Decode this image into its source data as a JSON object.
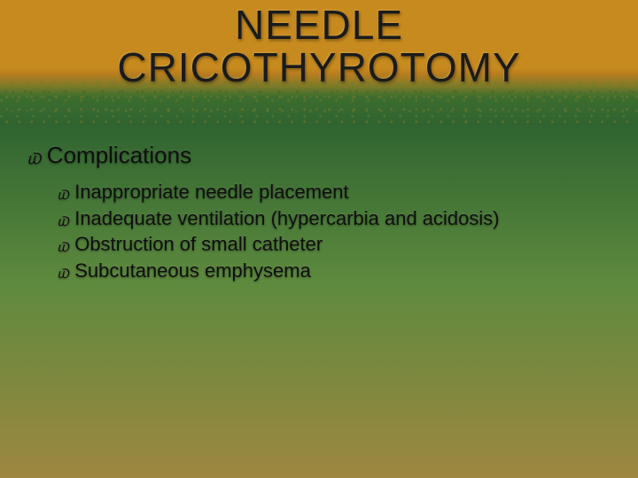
{
  "title_line1": "NEEDLE",
  "title_line2": "CRICOTHYROTOMY",
  "bullet_glyph": "⠰",
  "heading": "Complications",
  "items": [
    "Inappropriate needle placement",
    "Inadequate ventilation (hypercarbia and acidosis)",
    "Obstruction of small catheter",
    "Subcutaneous emphysema"
  ],
  "colors": {
    "header_top": "#c78a1e",
    "header_bottom": "#2f6430",
    "body_top": "#2f6430",
    "body_mid": "#5e8a3e",
    "body_bottom": "#9e8740",
    "text": "#1b1b1b"
  },
  "fonts": {
    "family": "Comic Sans MS / handwritten",
    "title_size_pt": 46,
    "l1_size_pt": 26,
    "l2_size_pt": 22
  }
}
